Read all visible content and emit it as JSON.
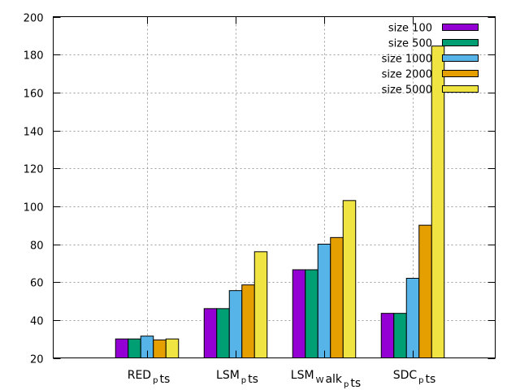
{
  "chart_data": {
    "type": "bar",
    "title": "",
    "xlabel": "",
    "ylabel": "",
    "ylim": [
      20,
      200
    ],
    "yticks": [
      20,
      40,
      60,
      80,
      100,
      120,
      140,
      160,
      180,
      200
    ],
    "grid": true,
    "legend_position": "top-right",
    "categories": [
      {
        "base": "RED",
        "sub": "p",
        "rest": "ts"
      },
      {
        "base": "LSM",
        "sub": "p",
        "rest": "ts"
      },
      {
        "base": "LSM",
        "sub": "W",
        "rest": "alk",
        "sub2": "p",
        "rest2": "ts"
      },
      {
        "base": "SDC",
        "sub": "p",
        "rest": "ts"
      }
    ],
    "series": [
      {
        "name": "size 100",
        "color": "#9400d3",
        "values": [
          30,
          46,
          66.5,
          43.5
        ]
      },
      {
        "name": "size 500",
        "color": "#009e73",
        "values": [
          30,
          46,
          66.5,
          43.5
        ]
      },
      {
        "name": "size 1000",
        "color": "#56b4e9",
        "values": [
          31.5,
          55.5,
          80,
          62
        ]
      },
      {
        "name": "size 2000",
        "color": "#e69f00",
        "values": [
          29.5,
          58.5,
          83.5,
          90
        ]
      },
      {
        "name": "size 5000",
        "color": "#f0e442",
        "values": [
          30,
          76,
          103,
          184.5
        ]
      }
    ]
  }
}
